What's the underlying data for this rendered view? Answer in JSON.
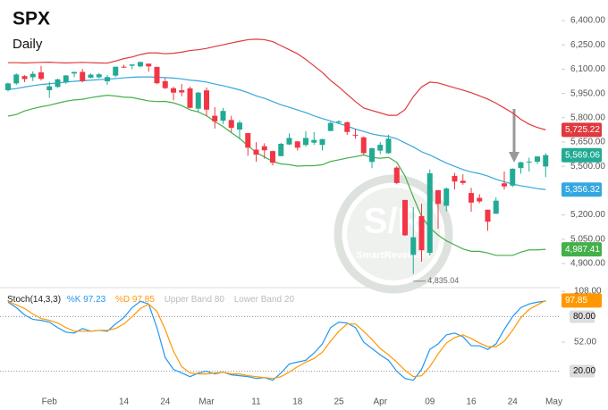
{
  "chart_data": {
    "type": "candlestick",
    "title": "SPX",
    "subtitle": "Daily",
    "watermark": {
      "logo": "S/R",
      "text": "SmartReversals"
    },
    "up_color": "#22ab94",
    "down_color": "#f23645",
    "categories": [
      null,
      null,
      null,
      null,
      null,
      "Feb",
      null,
      null,
      null,
      null,
      null,
      null,
      null,
      null,
      "14",
      null,
      null,
      null,
      null,
      "24",
      null,
      null,
      null,
      null,
      "Mar",
      null,
      null,
      null,
      null,
      null,
      "11",
      null,
      null,
      null,
      null,
      "18",
      null,
      null,
      null,
      null,
      "25",
      null,
      null,
      null,
      null,
      "Apr",
      null,
      null,
      null,
      null,
      null,
      "09",
      null,
      null,
      null,
      null,
      "16",
      null,
      null,
      null,
      null,
      "24",
      null,
      null,
      null,
      null
    ],
    "x_end_label": "May",
    "open": [
      5970,
      6012,
      6057,
      6050,
      6080,
      5970,
      5990,
      6020,
      6073,
      6083,
      6047,
      6050,
      6025,
      6060,
      6115,
      6121,
      6117,
      6134,
      6114,
      6026,
      5982,
      5970,
      5981,
      5856,
      5969,
      5812,
      5782,
      5786,
      5727,
      5705,
      5603,
      5624,
      5594,
      5563,
      5635,
      5654,
      5632,
      5646,
      5632,
      5718,
      5771,
      5772,
      5695,
      5679,
      5527,
      5597,
      5581,
      5492,
      5292,
      4953,
      5193,
      4966,
      5353,
      5256,
      5441,
      5411,
      5335,
      5305,
      5232,
      5207,
      5395,
      5381,
      5489,
      5529,
      5528,
      5499
    ],
    "high": [
      6017,
      6074,
      6063,
      6086,
      6120,
      6022,
      6042,
      6064,
      6084,
      6101,
      6073,
      6076,
      6063,
      6116,
      6127,
      6130,
      6147,
      6134,
      6115,
      6044,
      5992,
      6009,
      5993,
      5959,
      5987,
      5866,
      5861,
      5812,
      5783,
      5706,
      5649,
      5642,
      5597,
      5645,
      5703,
      5655,
      5716,
      5711,
      5670,
      5775,
      5786,
      5777,
      5732,
      5685,
      5615,
      5650,
      5695,
      5500,
      5292,
      5247,
      5268,
      5481,
      5353,
      5370,
      5460,
      5450,
      5367,
      5328,
      5232,
      5309,
      5469,
      5488,
      5528,
      5553,
      5562,
      5581
    ],
    "low": [
      5962,
      6002,
      6020,
      6027,
      6030,
      5923,
      5985,
      6010,
      6050,
      6019,
      6045,
      6043,
      6003,
      6051,
      6107,
      6100,
      6111,
      6084,
      6008,
      5977,
      5908,
      5932,
      5858,
      5837,
      5810,
      5733,
      5762,
      5711,
      5667,
      5565,
      5529,
      5547,
      5505,
      5563,
      5631,
      5597,
      5622,
      5632,
      5598,
      5718,
      5764,
      5694,
      5670,
      5572,
      5489,
      5576,
      5578,
      5390,
      5070,
      4835.04,
      4911,
      4950,
      5115,
      5221,
      5358,
      5386,
      5220,
      5272,
      5101,
      5207,
      5356,
      5372,
      5455,
      5468,
      5514,
      5433
    ],
    "close": [
      6012,
      6067,
      6039,
      6071,
      6040,
      5994,
      6037,
      6061,
      6083,
      6026,
      6066,
      6068,
      6051,
      6115,
      6114,
      6129,
      6144,
      6117,
      6013,
      5983,
      5955,
      5956,
      5861,
      5955,
      5850,
      5778,
      5842,
      5738,
      5770,
      5615,
      5572,
      5599,
      5522,
      5639,
      5675,
      5615,
      5675,
      5663,
      5668,
      5768,
      5777,
      5712,
      5693,
      5581,
      5612,
      5633,
      5671,
      5397,
      5074,
      5062,
      4982,
      5457,
      5268,
      5363,
      5406,
      5397,
      5276,
      5283,
      5158,
      5288,
      5376,
      5485,
      5525,
      5529,
      5561,
      5569
    ],
    "close_label": "5,569.06",
    "low_annotation": {
      "value": 4835.04,
      "label": "4,835.04"
    },
    "bands": [
      {
        "color": "#e0393e",
        "last_label": "5,725.22",
        "values": [
          6140,
          6140,
          6138,
          6140,
          6142,
          6143,
          6140,
          6138,
          6140,
          6142,
          6140,
          6138,
          6137,
          6150,
          6165,
          6175,
          6190,
          6200,
          6200,
          6195,
          6198,
          6205,
          6215,
          6220,
          6228,
          6240,
          6250,
          6262,
          6272,
          6282,
          6285,
          6282,
          6270,
          6245,
          6220,
          6195,
          6160,
          6120,
          6080,
          6030,
          5990,
          5945,
          5900,
          5860,
          5845,
          5830,
          5815,
          5815,
          5850,
          5930,
          5990,
          6020,
          6015,
          6000,
          5985,
          5970,
          5955,
          5935,
          5915,
          5890,
          5860,
          5830,
          5790,
          5760,
          5740,
          5725.22
        ]
      },
      {
        "color": "#35a7e0",
        "last_label": "5,356.32",
        "values": [
          5975,
          5980,
          5990,
          5998,
          6005,
          6010,
          6015,
          6020,
          6025,
          6028,
          6032,
          6035,
          6038,
          6042,
          6046,
          6050,
          6052,
          6052,
          6050,
          6048,
          6045,
          6040,
          6032,
          6028,
          6020,
          6008,
          5998,
          5985,
          5972,
          5955,
          5935,
          5920,
          5900,
          5880,
          5865,
          5848,
          5832,
          5812,
          5795,
          5780,
          5765,
          5748,
          5730,
          5715,
          5700,
          5690,
          5685,
          5670,
          5645,
          5620,
          5590,
          5570,
          5545,
          5520,
          5500,
          5480,
          5465,
          5455,
          5440,
          5420,
          5405,
          5390,
          5380,
          5372,
          5362,
          5356.32
        ]
      },
      {
        "color": "#43b049",
        "last_label": "4,987.41",
        "values": [
          5810,
          5820,
          5842,
          5856,
          5868,
          5877,
          5890,
          5902,
          5910,
          5914,
          5924,
          5932,
          5939,
          5934,
          5927,
          5925,
          5914,
          5904,
          5900,
          5901,
          5892,
          5875,
          5849,
          5836,
          5812,
          5776,
          5746,
          5708,
          5672,
          5628,
          5585,
          5558,
          5530,
          5515,
          5510,
          5501,
          5504,
          5504,
          5510,
          5530,
          5540,
          5551,
          5560,
          5570,
          5555,
          5550,
          5555,
          5525,
          5440,
          5310,
          5190,
          5120,
          5075,
          5040,
          5015,
          4990,
          4975,
          4975,
          4965,
          4950,
          4950,
          4950,
          4970,
          4984,
          4984,
          4987.41
        ]
      }
    ],
    "ylim": [
      4762,
      6527
    ],
    "yticks": [
      {
        "value": 6400,
        "label": "6,400.00"
      },
      {
        "value": 6250,
        "label": "6,250.00"
      },
      {
        "value": 6100,
        "label": "6,100.00"
      },
      {
        "value": 5950,
        "label": "5,950.00"
      },
      {
        "value": 5800,
        "label": "5,800.00"
      },
      {
        "value": 5650,
        "label": "5,650.00"
      },
      {
        "value": 5500,
        "label": "5,500.00"
      },
      {
        "value": 5200,
        "label": "5,200.00"
      },
      {
        "value": 5050,
        "label": "5,050.00"
      },
      {
        "value": 4900,
        "label": "4,900.00"
      }
    ],
    "stoch": {
      "title": "Stoch(14,3,3)",
      "k_label": "%K 97.23",
      "d_label": "%D 97.85",
      "upper_label": "Upper Band 80",
      "lower_label": "Lower Band 20",
      "ylim": [
        -6,
        112
      ],
      "yticks": [
        {
          "value": 108,
          "label": "108.00"
        },
        {
          "value": 52,
          "label": "52.00"
        }
      ],
      "bands": [
        {
          "value": 80,
          "label": "80.00"
        },
        {
          "value": 20,
          "label": "20.00"
        }
      ],
      "k": {
        "color": "#2196f3",
        "values": [
          96,
          90,
          82,
          77,
          76,
          74,
          68,
          63,
          62,
          67,
          64,
          65,
          64,
          72,
          79,
          90,
          97,
          94,
          68,
          35,
          22,
          18,
          14,
          18,
          20,
          17,
          19,
          16,
          15,
          14,
          12,
          13,
          10,
          18,
          28,
          30,
          32,
          40,
          50,
          68,
          74,
          73,
          68,
          52,
          45,
          38,
          32,
          20,
          12,
          10,
          22,
          44,
          50,
          60,
          62,
          58,
          48,
          48,
          44,
          50,
          66,
          80,
          90,
          94,
          96,
          97.23
        ]
      },
      "d": {
        "color": "#ff9800",
        "last_label": "97.85",
        "values": [
          97,
          93,
          89,
          83,
          78,
          76,
          73,
          68,
          64,
          64,
          64,
          65,
          65,
          67,
          72,
          80,
          89,
          94,
          86,
          66,
          42,
          25,
          18,
          17,
          17,
          18,
          19,
          17,
          17,
          15,
          14,
          13,
          12,
          14,
          19,
          25,
          30,
          34,
          41,
          53,
          64,
          72,
          72,
          64,
          55,
          45,
          38,
          30,
          21,
          14,
          15,
          25,
          39,
          51,
          57,
          60,
          56,
          51,
          47,
          47,
          53,
          65,
          79,
          88,
          93,
          97.85
        ]
      }
    }
  }
}
